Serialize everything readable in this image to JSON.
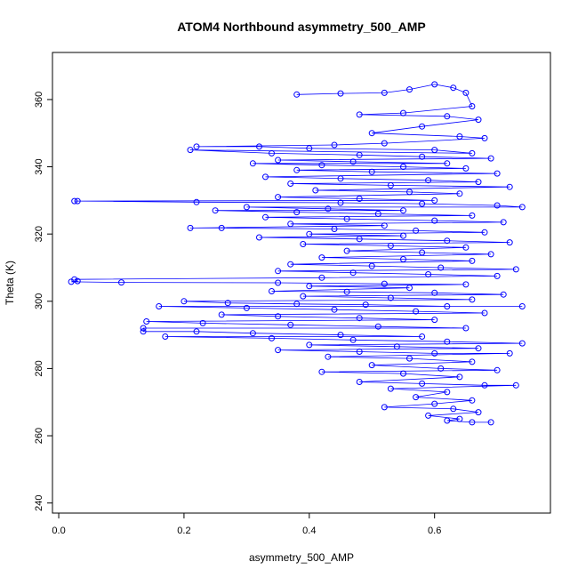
{
  "chart_data": {
    "type": "scatter",
    "title": "ATOM4 Northbound asymmetry_500_AMP",
    "xlabel": "asymmetry_500_AMP",
    "ylabel": "Theta (K)",
    "xlim": [
      -0.01,
      0.785
    ],
    "ylim": [
      237,
      374
    ],
    "x_ticks": [
      0.0,
      0.2,
      0.4,
      0.6
    ],
    "x_tick_labels": [
      "0.0",
      "0.2",
      "0.4",
      "0.6"
    ],
    "y_ticks": [
      240,
      260,
      280,
      300,
      320,
      340,
      360
    ],
    "y_tick_labels": [
      "240",
      "260",
      "280",
      "300",
      "320",
      "340",
      "360"
    ],
    "grid": false,
    "point_style": "open-circle",
    "connected": true,
    "series_color": "#0000ff",
    "series": [
      {
        "name": "",
        "points": [
          [
            0.38,
            361.5
          ],
          [
            0.45,
            361.8
          ],
          [
            0.52,
            362.0
          ],
          [
            0.56,
            363.0
          ],
          [
            0.6,
            364.5
          ],
          [
            0.63,
            363.5
          ],
          [
            0.65,
            362.0
          ],
          [
            0.66,
            358.0
          ],
          [
            0.55,
            356.0
          ],
          [
            0.48,
            355.5
          ],
          [
            0.62,
            355.0
          ],
          [
            0.67,
            354.0
          ],
          [
            0.58,
            352.0
          ],
          [
            0.5,
            350.0
          ],
          [
            0.64,
            349.0
          ],
          [
            0.68,
            348.5
          ],
          [
            0.52,
            347.0
          ],
          [
            0.44,
            346.5
          ],
          [
            0.22,
            346.0
          ],
          [
            0.32,
            346.0
          ],
          [
            0.4,
            345.5
          ],
          [
            0.6,
            345.0
          ],
          [
            0.66,
            344.0
          ],
          [
            0.21,
            345.0
          ],
          [
            0.34,
            344.0
          ],
          [
            0.48,
            343.5
          ],
          [
            0.58,
            343.0
          ],
          [
            0.69,
            342.5
          ],
          [
            0.35,
            342.0
          ],
          [
            0.47,
            341.5
          ],
          [
            0.62,
            341.0
          ],
          [
            0.31,
            341.0
          ],
          [
            0.42,
            340.5
          ],
          [
            0.55,
            340.0
          ],
          [
            0.65,
            339.5
          ],
          [
            0.38,
            339.0
          ],
          [
            0.5,
            338.5
          ],
          [
            0.7,
            338.0
          ],
          [
            0.33,
            337.0
          ],
          [
            0.45,
            336.5
          ],
          [
            0.59,
            336.0
          ],
          [
            0.67,
            335.5
          ],
          [
            0.37,
            335.0
          ],
          [
            0.53,
            334.5
          ],
          [
            0.72,
            334.0
          ],
          [
            0.41,
            333.0
          ],
          [
            0.56,
            332.5
          ],
          [
            0.64,
            332.0
          ],
          [
            0.35,
            331.0
          ],
          [
            0.48,
            330.5
          ],
          [
            0.6,
            330.0
          ],
          [
            0.025,
            329.8
          ],
          [
            0.03,
            329.8
          ],
          [
            0.22,
            329.5
          ],
          [
            0.45,
            329.3
          ],
          [
            0.58,
            329.0
          ],
          [
            0.7,
            328.5
          ],
          [
            0.74,
            328.0
          ],
          [
            0.3,
            328.0
          ],
          [
            0.43,
            327.5
          ],
          [
            0.55,
            327.0
          ],
          [
            0.25,
            327.0
          ],
          [
            0.38,
            326.5
          ],
          [
            0.51,
            326.0
          ],
          [
            0.66,
            325.5
          ],
          [
            0.33,
            325.0
          ],
          [
            0.46,
            324.5
          ],
          [
            0.6,
            324.0
          ],
          [
            0.71,
            323.5
          ],
          [
            0.37,
            323.0
          ],
          [
            0.52,
            322.5
          ],
          [
            0.21,
            321.8
          ],
          [
            0.26,
            321.8
          ],
          [
            0.44,
            321.5
          ],
          [
            0.57,
            321.0
          ],
          [
            0.68,
            320.5
          ],
          [
            0.4,
            320.0
          ],
          [
            0.55,
            319.5
          ],
          [
            0.32,
            319.0
          ],
          [
            0.48,
            318.5
          ],
          [
            0.62,
            318.0
          ],
          [
            0.72,
            317.5
          ],
          [
            0.39,
            317.0
          ],
          [
            0.53,
            316.5
          ],
          [
            0.65,
            316.0
          ],
          [
            0.46,
            315.0
          ],
          [
            0.58,
            314.5
          ],
          [
            0.69,
            314.0
          ],
          [
            0.42,
            313.0
          ],
          [
            0.55,
            312.5
          ],
          [
            0.66,
            312.0
          ],
          [
            0.37,
            311.0
          ],
          [
            0.5,
            310.5
          ],
          [
            0.61,
            310.0
          ],
          [
            0.73,
            309.5
          ],
          [
            0.35,
            309.0
          ],
          [
            0.47,
            308.5
          ],
          [
            0.59,
            308.0
          ],
          [
            0.7,
            307.5
          ],
          [
            0.42,
            307.0
          ],
          [
            0.025,
            306.5
          ],
          [
            0.03,
            306.0
          ],
          [
            0.02,
            305.8
          ],
          [
            0.1,
            305.6
          ],
          [
            0.35,
            305.5
          ],
          [
            0.52,
            305.2
          ],
          [
            0.65,
            305.0
          ],
          [
            0.4,
            304.5
          ],
          [
            0.56,
            304.0
          ],
          [
            0.34,
            303.0
          ],
          [
            0.46,
            302.8
          ],
          [
            0.6,
            302.5
          ],
          [
            0.71,
            302.0
          ],
          [
            0.39,
            301.5
          ],
          [
            0.53,
            301.0
          ],
          [
            0.66,
            300.5
          ],
          [
            0.2,
            300.0
          ],
          [
            0.27,
            299.5
          ],
          [
            0.38,
            299.2
          ],
          [
            0.49,
            299.0
          ],
          [
            0.62,
            298.5
          ],
          [
            0.74,
            298.5
          ],
          [
            0.16,
            298.5
          ],
          [
            0.3,
            298.0
          ],
          [
            0.44,
            297.5
          ],
          [
            0.57,
            297.0
          ],
          [
            0.68,
            296.5
          ],
          [
            0.26,
            296.0
          ],
          [
            0.35,
            295.5
          ],
          [
            0.48,
            295.0
          ],
          [
            0.6,
            294.5
          ],
          [
            0.14,
            294.0
          ],
          [
            0.23,
            293.5
          ],
          [
            0.37,
            293.0
          ],
          [
            0.51,
            292.5
          ],
          [
            0.65,
            292.0
          ],
          [
            0.135,
            292.0
          ],
          [
            0.135,
            291.0
          ],
          [
            0.22,
            291.0
          ],
          [
            0.31,
            290.5
          ],
          [
            0.45,
            290.0
          ],
          [
            0.58,
            289.5
          ],
          [
            0.17,
            289.5
          ],
          [
            0.34,
            289.0
          ],
          [
            0.47,
            288.5
          ],
          [
            0.62,
            288.0
          ],
          [
            0.74,
            287.5
          ],
          [
            0.4,
            287.0
          ],
          [
            0.54,
            286.5
          ],
          [
            0.67,
            286.0
          ],
          [
            0.35,
            285.5
          ],
          [
            0.48,
            285.0
          ],
          [
            0.6,
            284.5
          ],
          [
            0.72,
            284.5
          ],
          [
            0.43,
            283.5
          ],
          [
            0.56,
            283.0
          ],
          [
            0.66,
            282.0
          ],
          [
            0.5,
            281.0
          ],
          [
            0.61,
            280.0
          ],
          [
            0.7,
            279.5
          ],
          [
            0.42,
            279.0
          ],
          [
            0.55,
            278.5
          ],
          [
            0.64,
            277.5
          ],
          [
            0.48,
            276.0
          ],
          [
            0.58,
            275.5
          ],
          [
            0.68,
            275.0
          ],
          [
            0.73,
            275.0
          ],
          [
            0.53,
            274.0
          ],
          [
            0.62,
            273.0
          ],
          [
            0.57,
            271.5
          ],
          [
            0.66,
            270.5
          ],
          [
            0.6,
            269.5
          ],
          [
            0.52,
            268.5
          ],
          [
            0.63,
            268.0
          ],
          [
            0.67,
            267.0
          ],
          [
            0.59,
            266.0
          ],
          [
            0.64,
            265.0
          ],
          [
            0.62,
            264.5
          ],
          [
            0.66,
            264.0
          ],
          [
            0.69,
            264.0
          ]
        ]
      }
    ]
  }
}
